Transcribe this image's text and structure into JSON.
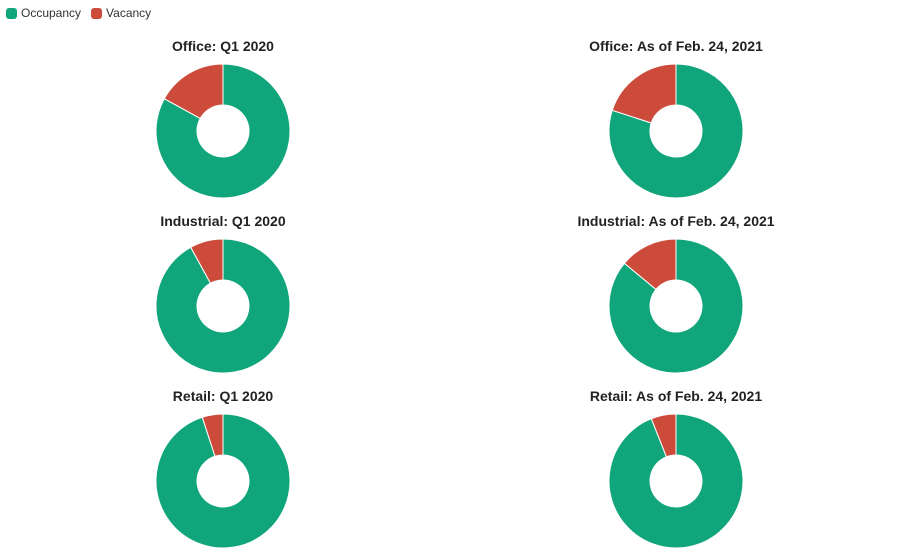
{
  "legend": {
    "occupancy_label": "Occupancy",
    "vacancy_label": "Vacancy"
  },
  "colors": {
    "occupancy": "#10a57a",
    "vacancy": "#cc4b3a"
  },
  "chart_data": [
    {
      "type": "pie",
      "title": "Office: Q1 2020",
      "categories": [
        "Occupancy",
        "Vacancy"
      ],
      "values": [
        83,
        17
      ]
    },
    {
      "type": "pie",
      "title": "Office: As of Feb. 24, 2021",
      "categories": [
        "Occupancy",
        "Vacancy"
      ],
      "values": [
        80,
        20
      ]
    },
    {
      "type": "pie",
      "title": "Industrial: Q1 2020",
      "categories": [
        "Occupancy",
        "Vacancy"
      ],
      "values": [
        92,
        8
      ]
    },
    {
      "type": "pie",
      "title": "Industrial: As of Feb. 24, 2021",
      "categories": [
        "Occupancy",
        "Vacancy"
      ],
      "values": [
        86,
        14
      ]
    },
    {
      "type": "pie",
      "title": "Retail: Q1 2020",
      "categories": [
        "Occupancy",
        "Vacancy"
      ],
      "values": [
        95,
        5
      ]
    },
    {
      "type": "pie",
      "title": "Retail: As of Feb. 24, 2021",
      "categories": [
        "Occupancy",
        "Vacancy"
      ],
      "values": [
        94,
        6
      ]
    }
  ]
}
